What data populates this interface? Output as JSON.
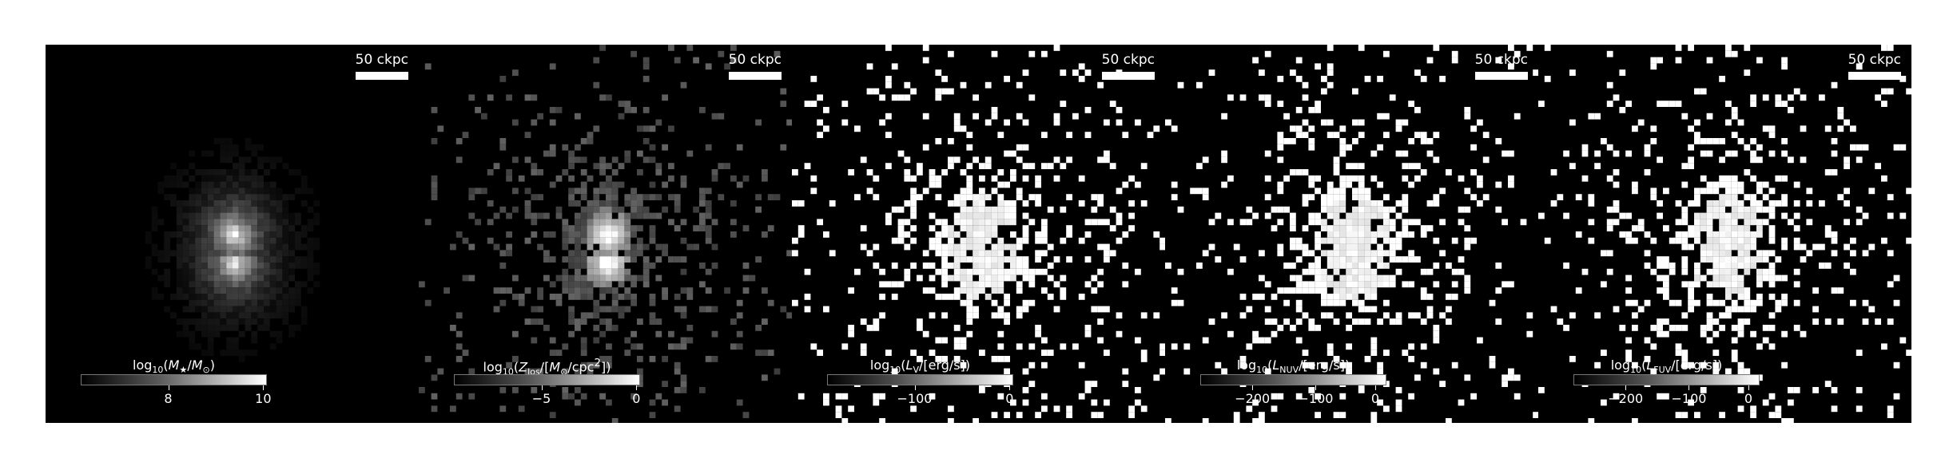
{
  "panels": [
    {
      "id": "stellar-mass",
      "scale_label": "50 ckpc",
      "colorbar_label_html": "log<sub>10</sub>(<i>M</i><sub>★</sub>/<i>M</i><sub>⊙</sub>)",
      "colorbar_ticks": [
        "8",
        "10"
      ],
      "style": "smooth"
    },
    {
      "id": "metallicity",
      "scale_label": "50 ckpc",
      "colorbar_label_html": "log<sub>10</sub>(<i>Z</i><sub>los</sub>/[<i>M</i><sub>⊙</sub>/cpc<sup>2</sup>])",
      "colorbar_ticks": [
        "−5",
        "0"
      ],
      "style": "grey-pixels"
    },
    {
      "id": "luminosity-v",
      "scale_label": "50 ckpc",
      "colorbar_label_html": "log<sub>10</sub>(<i>L</i><sub>V</sub>/[erg/s])",
      "colorbar_ticks": [
        "−100",
        "0"
      ],
      "style": "white-pixels"
    },
    {
      "id": "luminosity-nuv",
      "scale_label": "50 ckpc",
      "colorbar_label_html": "log<sub>10</sub>(<i>L</i><sub>NUV</sub>/[erg/s])",
      "colorbar_ticks": [
        "−200",
        "−100",
        "0"
      ],
      "style": "white-pixels"
    },
    {
      "id": "luminosity-fuv",
      "scale_label": "50 ckpc",
      "colorbar_label_html": "log<sub>10</sub>(<i>L</i><sub>FUV</sub>/[erg/s])",
      "colorbar_ticks": [
        "−200",
        "−100",
        "0"
      ],
      "style": "white-pixels"
    }
  ],
  "colors": {
    "background": "#000000",
    "foreground": "#ffffff"
  }
}
